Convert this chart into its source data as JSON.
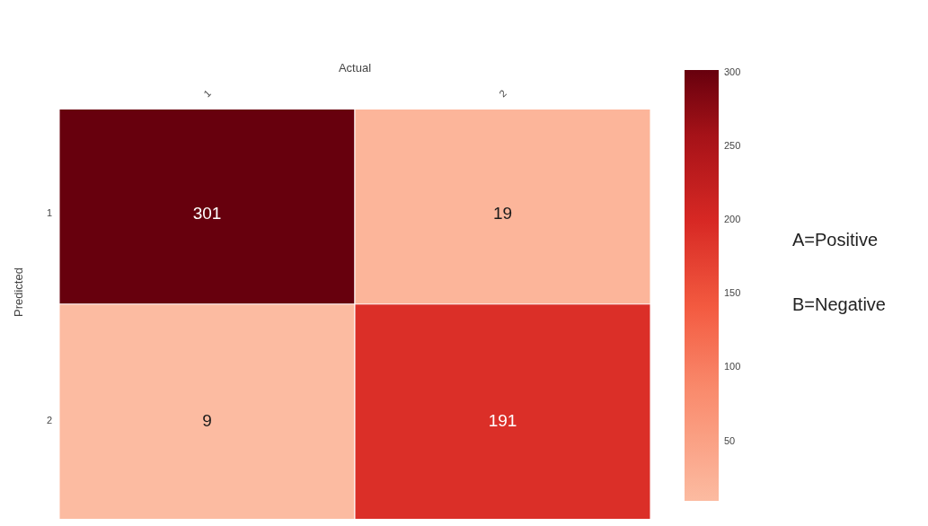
{
  "chart_data": {
    "type": "heatmap",
    "xlabel": "Actual",
    "ylabel": "Predicted",
    "categories": [
      "1",
      "2"
    ],
    "y_categories": [
      "1",
      "2"
    ],
    "cells": [
      [
        301,
        19
      ],
      [
        9,
        191
      ]
    ],
    "clim": [
      9,
      301
    ],
    "data_labels": true,
    "cticks": [
      50,
      100,
      150,
      200,
      250,
      300
    ],
    "annotations": [
      "A=Positive",
      "B=Negative"
    ]
  }
}
